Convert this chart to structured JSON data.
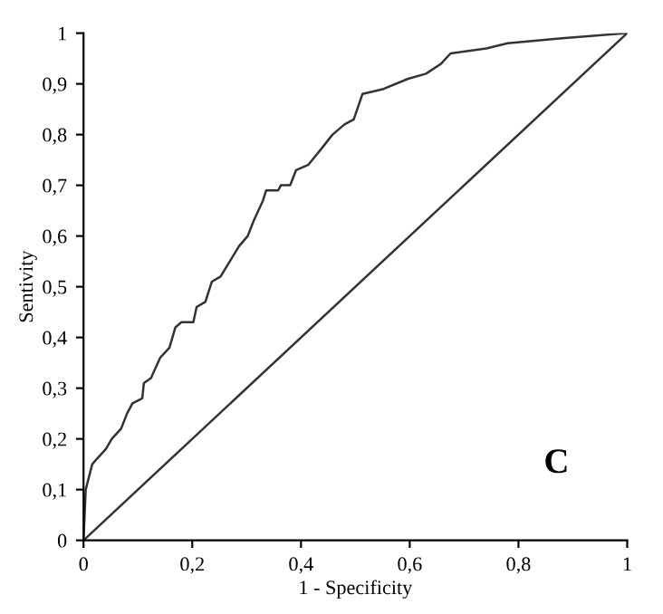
{
  "chart_data": {
    "type": "line",
    "xlabel": "1 - Specificity",
    "ylabel": "Sentivity",
    "annotations": [
      "C"
    ],
    "series": [
      {
        "color": "#333333",
        "x": [
          0,
          0.004,
          0.016,
          0.024,
          0.041,
          0.052,
          0.069,
          0.08,
          0.09,
          0.108,
          0.111,
          0.124,
          0.141,
          0.158,
          0.169,
          0.18,
          0.202,
          0.208,
          0.224,
          0.236,
          0.252,
          0.269,
          0.286,
          0.302,
          0.313,
          0.33,
          0.336,
          0.358,
          0.363,
          0.38,
          0.391,
          0.413,
          0.436,
          0.458,
          0.48,
          0.497,
          0.513,
          0.552,
          0.597,
          0.63,
          0.658,
          0.675,
          0.741,
          0.78,
          0.88,
          1
        ],
        "values": [
          0,
          0.1,
          0.15,
          0.16,
          0.18,
          0.2,
          0.22,
          0.25,
          0.27,
          0.28,
          0.31,
          0.32,
          0.36,
          0.38,
          0.42,
          0.43,
          0.43,
          0.46,
          0.47,
          0.51,
          0.52,
          0.55,
          0.58,
          0.6,
          0.63,
          0.67,
          0.69,
          0.69,
          0.7,
          0.7,
          0.73,
          0.74,
          0.77,
          0.8,
          0.82,
          0.83,
          0.88,
          0.89,
          0.91,
          0.92,
          0.94,
          0.96,
          0.97,
          0.98,
          0.99,
          1
        ]
      },
      {
        "color": "#333333",
        "x": [
          0,
          1
        ],
        "values": [
          0,
          1
        ]
      }
    ],
    "xlim": [
      0,
      1
    ],
    "ylim": [
      0,
      1
    ],
    "xticks": [
      0,
      {
        "value": 0.2,
        "label": "0,2"
      },
      {
        "value": 0.4,
        "label": "0,4"
      },
      {
        "value": 0.6,
        "label": "0,6"
      },
      {
        "value": 0.8,
        "label": "0,8"
      },
      1
    ],
    "yticks": [
      0,
      {
        "value": 0.1,
        "label": "0,1"
      },
      {
        "value": 0.2,
        "label": "0,2"
      },
      {
        "value": 0.3,
        "label": "0,3"
      },
      {
        "value": 0.4,
        "label": "0,4"
      },
      {
        "value": 0.5,
        "label": "0,5"
      },
      {
        "value": 0.6,
        "label": "0,6"
      },
      {
        "value": 0.7,
        "label": "0,7"
      },
      {
        "value": 0.8,
        "label": "0,8"
      },
      {
        "value": 0.9,
        "label": "0,9"
      },
      1
    ],
    "grid": false
  }
}
